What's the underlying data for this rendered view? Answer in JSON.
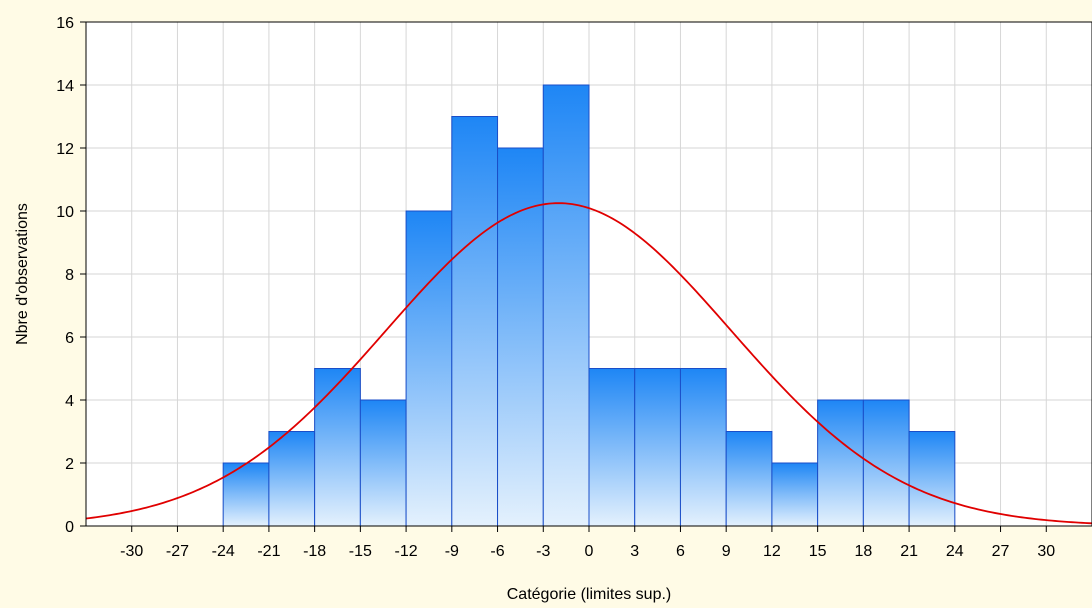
{
  "chart_data": {
    "type": "bar",
    "title": "",
    "xlabel": "Catégorie (limites sup.)",
    "ylabel": "Nbre d'observations",
    "xlim": [
      -33,
      33
    ],
    "ylim": [
      0,
      16
    ],
    "x_ticks": [
      -30,
      -27,
      -24,
      -21,
      -18,
      -15,
      -12,
      -9,
      -6,
      -3,
      0,
      3,
      6,
      9,
      12,
      15,
      18,
      21,
      24,
      27,
      30
    ],
    "y_ticks": [
      0,
      2,
      4,
      6,
      8,
      10,
      12,
      14,
      16
    ],
    "bins": [
      {
        "start": -24,
        "end": -21,
        "count": 2
      },
      {
        "start": -21,
        "end": -18,
        "count": 3
      },
      {
        "start": -18,
        "end": -15,
        "count": 5
      },
      {
        "start": -15,
        "end": -12,
        "count": 4
      },
      {
        "start": -12,
        "end": -9,
        "count": 10
      },
      {
        "start": -9,
        "end": -6,
        "count": 13
      },
      {
        "start": -6,
        "end": -3,
        "count": 12
      },
      {
        "start": -3,
        "end": 0,
        "count": 14
      },
      {
        "start": 0,
        "end": 3,
        "count": 5
      },
      {
        "start": 3,
        "end": 6,
        "count": 5
      },
      {
        "start": 6,
        "end": 9,
        "count": 5
      },
      {
        "start": 9,
        "end": 12,
        "count": 3
      },
      {
        "start": 12,
        "end": 15,
        "count": 2
      },
      {
        "start": 15,
        "end": 18,
        "count": 4
      },
      {
        "start": 18,
        "end": 21,
        "count": 4
      },
      {
        "start": 21,
        "end": 24,
        "count": 3
      }
    ],
    "normal_curve": {
      "mean": -2,
      "sd": 11.3,
      "peak": 10.25,
      "color": "#e00000"
    },
    "grid": true,
    "colors": {
      "bar_top": "#1e86f5",
      "bar_bottom": "#e4f1fd",
      "bar_edge": "#1a4ec8",
      "grid": "#d6d6d6",
      "background": "#fffbe6",
      "plot_bg": "#ffffff"
    }
  }
}
